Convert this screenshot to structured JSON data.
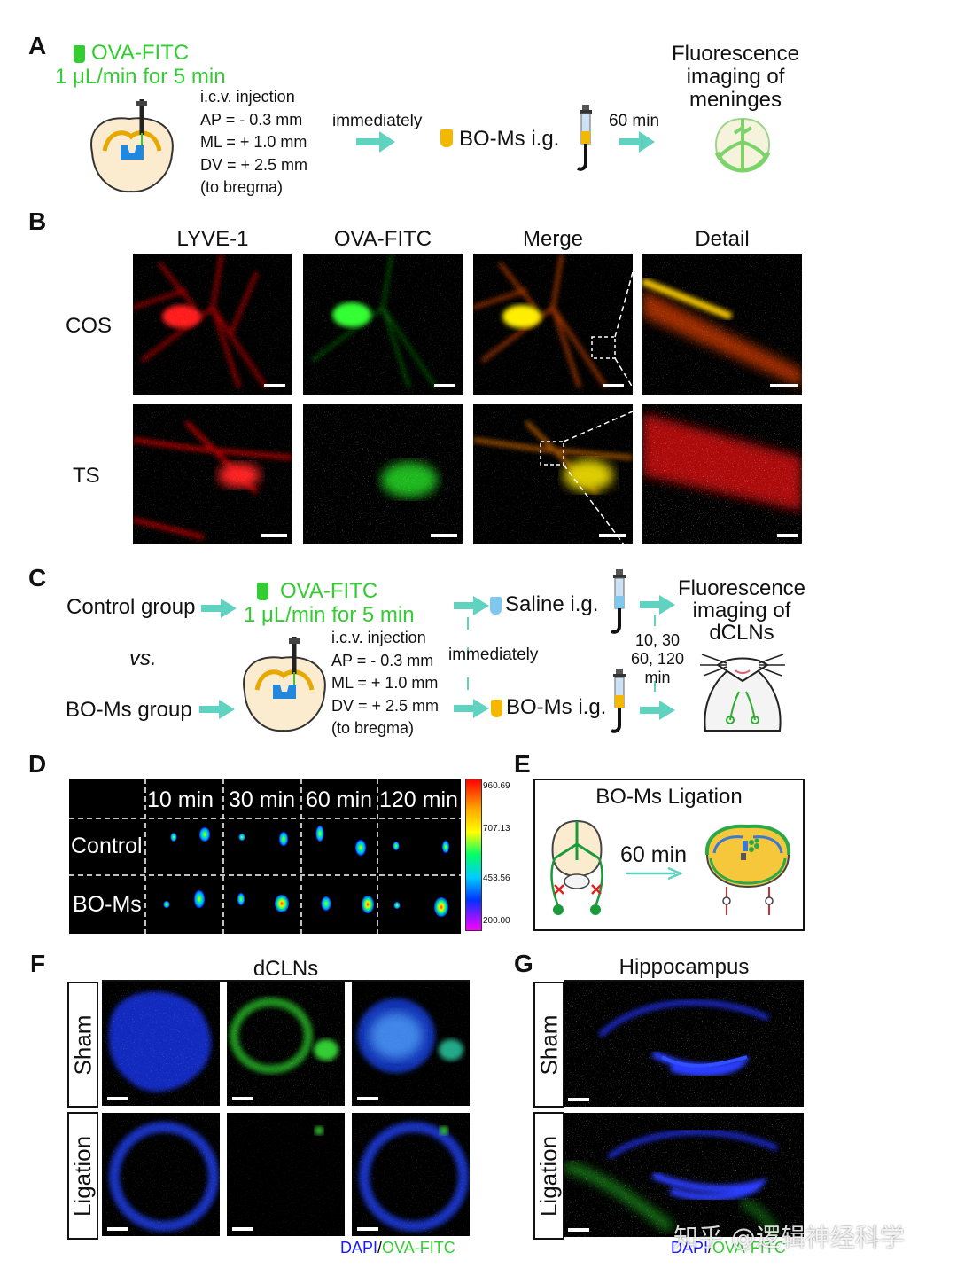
{
  "panelA": {
    "letter": "A",
    "ova_label": "OVA-FITC",
    "rate": "1 μL/min for 5 min",
    "injection_lines": [
      "i.c.v. injection",
      "AP = - 0.3 mm",
      "ML = + 1.0 mm",
      "DV = + 2.5 mm",
      "(to bregma)"
    ],
    "immediately": "immediately",
    "boms_ig": "BO-Ms i.g.",
    "time": "60 min",
    "result_lines": [
      "Fluorescence",
      "imaging of",
      "meninges"
    ]
  },
  "panelB": {
    "letter": "B",
    "columns": [
      "LYVE-1",
      "OVA-FITC",
      "Merge",
      "Detail"
    ],
    "rows": [
      "COS",
      "TS"
    ]
  },
  "panelC": {
    "letter": "C",
    "control_group": "Control group",
    "vs": "vs.",
    "boms_group": "BO-Ms group",
    "ova_label": "OVA-FITC",
    "rate": "1 μL/min for 5 min",
    "injection_lines": [
      "i.c.v. injection",
      "AP = - 0.3 mm",
      "ML = + 1.0 mm",
      "DV = + 2.5 mm",
      "(to bregma)"
    ],
    "immediately": "immediately",
    "saline_ig": "Saline i.g.",
    "boms_ig": "BO-Ms i.g.",
    "times": [
      "10, 30",
      "60, 120",
      "min"
    ],
    "result_lines": [
      "Fluorescence",
      "imaging of",
      "dCLNs"
    ]
  },
  "panelD": {
    "letter": "D",
    "columns": [
      "10 min",
      "30 min",
      "60 min",
      "120 min"
    ],
    "rows": [
      "Control",
      "BO-Ms"
    ],
    "scale_ticks": [
      "960.69",
      "707.13",
      "453.56",
      "200.00"
    ],
    "colors": {
      "scale_top": "#ff0000",
      "scale_bottom": "#ff00ff"
    }
  },
  "panelE": {
    "letter": "E",
    "title": "BO-Ms Ligation",
    "time": "60 min"
  },
  "panelF": {
    "letter": "F",
    "title": "dCLNs",
    "rows": [
      "Sham",
      "Ligation"
    ],
    "legend_dapi": "DAPI",
    "legend_sep": "/",
    "legend_ova": "OVA-FITC"
  },
  "panelG": {
    "letter": "G",
    "title": "Hippocampus",
    "rows": [
      "Sham",
      "Ligation"
    ],
    "legend_dapi": "DAPI",
    "legend_sep": "/",
    "legend_ova": "OVA-FITC"
  },
  "watermark": "知乎 @逻辑神经科学",
  "colors": {
    "green_text": "#33cc33",
    "arrow": "#5fd3c0",
    "dapi_blue": "#1a1aff",
    "yellow": "#f5b800"
  }
}
